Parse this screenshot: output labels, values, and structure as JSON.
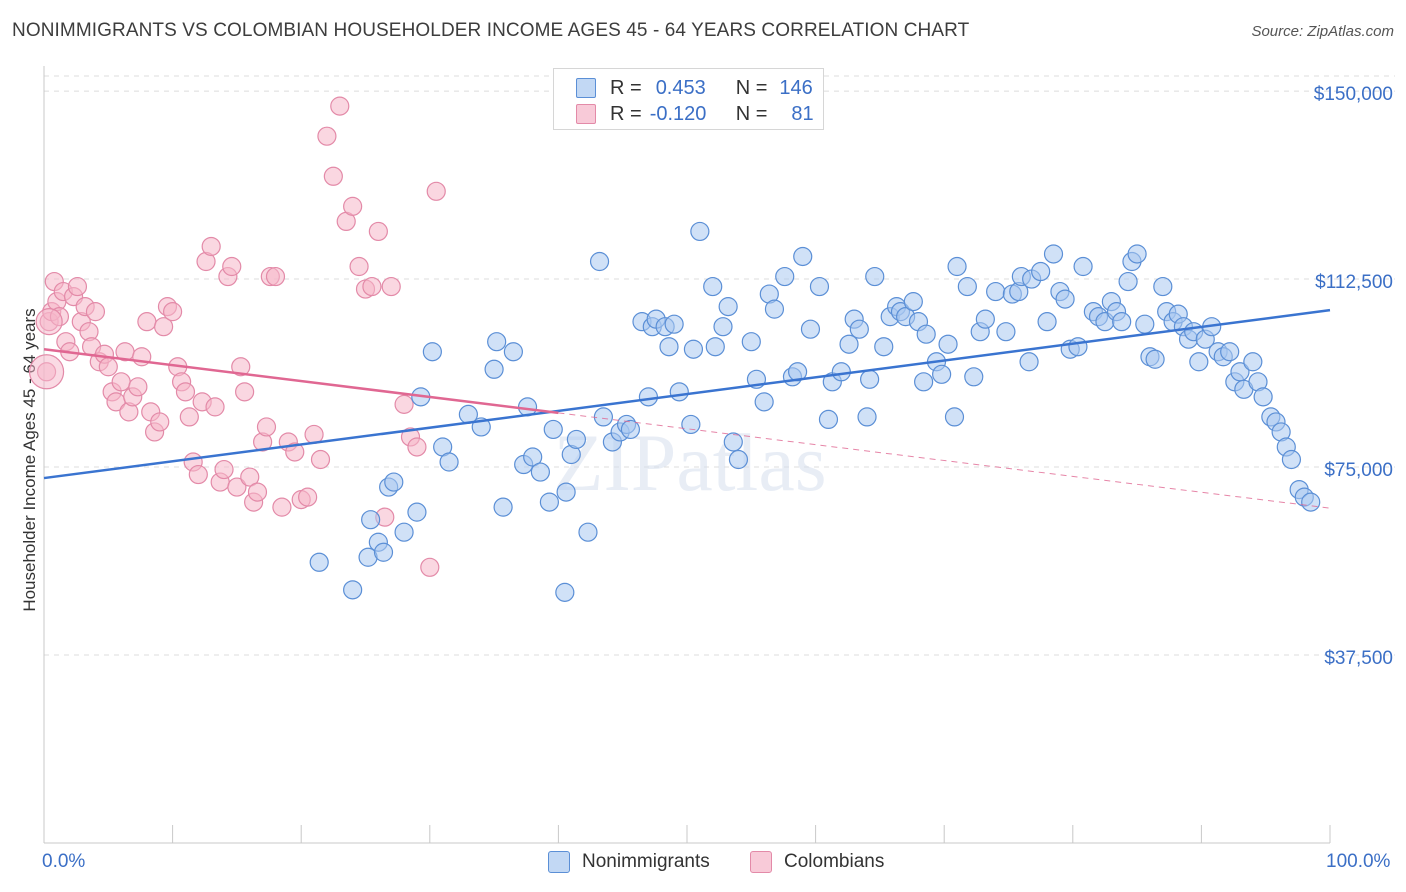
{
  "title": "NONIMMIGRANTS VS COLOMBIAN HOUSEHOLDER INCOME AGES 45 - 64 YEARS CORRELATION CHART",
  "source": "Source: ZipAtlas.com",
  "watermark": "ZIPatlas",
  "colors": {
    "blue_fill": "#a9c8f0",
    "blue_stroke": "#5b8fd6",
    "blue_line": "#3a74d0",
    "pink_fill": "#f5b6c9",
    "pink_stroke": "#e38aa8",
    "pink_line": "#e06792",
    "axis_text": "#3b6fc6",
    "grid": "#dcdcdc"
  },
  "legend": {
    "rows": [
      {
        "r_label": "R =",
        "r_value": "0.453",
        "n_label": "N =",
        "n_value": "146",
        "series": "blue"
      },
      {
        "r_label": "R =",
        "r_value": "-0.120",
        "n_label": "N =",
        "n_value": "81",
        "series": "pink"
      }
    ]
  },
  "bottom_legend": [
    {
      "label": "Nonimmigrants",
      "series": "blue"
    },
    {
      "label": "Colombians",
      "series": "pink"
    }
  ],
  "chart_data": {
    "type": "scatter",
    "title": "NONIMMIGRANTS VS COLOMBIAN HOUSEHOLDER INCOME AGES 45 - 64 YEARS CORRELATION CHART",
    "xlabel": "",
    "ylabel": "Householder Income Ages 45 - 64 years",
    "xlim": [
      0,
      100
    ],
    "ylim": [
      0,
      155000
    ],
    "x_tick_labels": [
      "0.0%",
      "100.0%"
    ],
    "y_ticks": [
      37500,
      75000,
      112500,
      150000
    ],
    "y_tick_labels": [
      "$37,500",
      "$75,000",
      "$112,500",
      "$150,000"
    ],
    "grid": true,
    "legend_placement": "top-center",
    "series": [
      {
        "name": "Nonimmigrants",
        "color": "blue",
        "trend": {
          "x0": 0,
          "y0": 72800,
          "x1": 100,
          "y1": 106300
        },
        "points": [
          [
            21.4,
            56000
          ],
          [
            24.0,
            50500
          ],
          [
            25.4,
            64500
          ],
          [
            25.2,
            57000
          ],
          [
            26.0,
            60000
          ],
          [
            26.4,
            58000
          ],
          [
            26.8,
            71000
          ],
          [
            27.2,
            72000
          ],
          [
            28.0,
            62000
          ],
          [
            29.0,
            66000
          ],
          [
            29.3,
            89000
          ],
          [
            30.2,
            98000
          ],
          [
            31.0,
            79000
          ],
          [
            31.5,
            76000
          ],
          [
            33.0,
            85500
          ],
          [
            34.0,
            83000
          ],
          [
            35.0,
            94500
          ],
          [
            35.2,
            100000
          ],
          [
            35.7,
            67000
          ],
          [
            36.5,
            98000
          ],
          [
            37.3,
            75500
          ],
          [
            37.6,
            87000
          ],
          [
            38.0,
            77000
          ],
          [
            38.6,
            74000
          ],
          [
            39.3,
            68000
          ],
          [
            39.6,
            82500
          ],
          [
            40.5,
            50000
          ],
          [
            40.6,
            70000
          ],
          [
            41.0,
            77500
          ],
          [
            41.4,
            80500
          ],
          [
            42.3,
            62000
          ],
          [
            43.2,
            116000
          ],
          [
            43.5,
            85000
          ],
          [
            44.2,
            80000
          ],
          [
            44.8,
            82000
          ],
          [
            45.3,
            83500
          ],
          [
            45.6,
            82500
          ],
          [
            46.5,
            104000
          ],
          [
            47.0,
            89000
          ],
          [
            47.3,
            103000
          ],
          [
            47.6,
            104500
          ],
          [
            48.3,
            103000
          ],
          [
            48.6,
            99000
          ],
          [
            49.0,
            103500
          ],
          [
            49.4,
            90000
          ],
          [
            50.3,
            83500
          ],
          [
            50.5,
            98500
          ],
          [
            51.0,
            122000
          ],
          [
            52.0,
            111000
          ],
          [
            52.2,
            99000
          ],
          [
            52.8,
            103000
          ],
          [
            53.2,
            107000
          ],
          [
            53.6,
            80000
          ],
          [
            54.0,
            76500
          ],
          [
            55.0,
            100000
          ],
          [
            55.4,
            92500
          ],
          [
            56.0,
            88000
          ],
          [
            56.4,
            109500
          ],
          [
            56.8,
            106500
          ],
          [
            57.6,
            113000
          ],
          [
            58.2,
            93000
          ],
          [
            58.6,
            94000
          ],
          [
            59.0,
            117000
          ],
          [
            59.6,
            102500
          ],
          [
            60.3,
            111000
          ],
          [
            61.0,
            84500
          ],
          [
            61.3,
            92000
          ],
          [
            62.0,
            94000
          ],
          [
            62.6,
            99500
          ],
          [
            63.0,
            104500
          ],
          [
            63.4,
            102500
          ],
          [
            64.0,
            85000
          ],
          [
            64.2,
            92500
          ],
          [
            64.6,
            113000
          ],
          [
            65.3,
            99000
          ],
          [
            65.8,
            105000
          ],
          [
            66.3,
            107000
          ],
          [
            66.6,
            106000
          ],
          [
            67.0,
            105000
          ],
          [
            67.6,
            108000
          ],
          [
            68.0,
            104000
          ],
          [
            68.4,
            92000
          ],
          [
            68.6,
            101500
          ],
          [
            69.4,
            96000
          ],
          [
            69.8,
            93500
          ],
          [
            70.3,
            99500
          ],
          [
            70.8,
            85000
          ],
          [
            71.0,
            115000
          ],
          [
            71.8,
            111000
          ],
          [
            72.3,
            93000
          ],
          [
            72.8,
            102000
          ],
          [
            73.2,
            104500
          ],
          [
            74.0,
            110000
          ],
          [
            74.8,
            102000
          ],
          [
            75.3,
            109500
          ],
          [
            75.8,
            110000
          ],
          [
            76.0,
            113000
          ],
          [
            76.6,
            96000
          ],
          [
            76.8,
            112500
          ],
          [
            77.5,
            114000
          ],
          [
            78.0,
            104000
          ],
          [
            78.5,
            117500
          ],
          [
            79.0,
            110000
          ],
          [
            79.4,
            108500
          ],
          [
            79.8,
            98500
          ],
          [
            80.4,
            99000
          ],
          [
            80.8,
            115000
          ],
          [
            81.6,
            106000
          ],
          [
            82.0,
            105000
          ],
          [
            82.5,
            104000
          ],
          [
            83.0,
            108000
          ],
          [
            83.4,
            106000
          ],
          [
            83.8,
            104000
          ],
          [
            84.3,
            112000
          ],
          [
            84.6,
            116000
          ],
          [
            85.0,
            117500
          ],
          [
            85.6,
            103500
          ],
          [
            86.0,
            97000
          ],
          [
            86.4,
            96500
          ],
          [
            87.0,
            111000
          ],
          [
            87.3,
            106000
          ],
          [
            87.8,
            104000
          ],
          [
            88.2,
            105500
          ],
          [
            88.6,
            103000
          ],
          [
            89.0,
            100500
          ],
          [
            89.4,
            102000
          ],
          [
            89.8,
            96000
          ],
          [
            90.3,
            100500
          ],
          [
            90.8,
            103000
          ],
          [
            91.3,
            98000
          ],
          [
            91.7,
            97000
          ],
          [
            92.2,
            98000
          ],
          [
            92.6,
            92000
          ],
          [
            93.0,
            94000
          ],
          [
            93.3,
            90500
          ],
          [
            94.0,
            96000
          ],
          [
            94.4,
            92000
          ],
          [
            94.8,
            89000
          ],
          [
            95.4,
            85000
          ],
          [
            95.8,
            84000
          ],
          [
            96.2,
            82000
          ],
          [
            96.6,
            79000
          ],
          [
            97.0,
            76500
          ],
          [
            97.6,
            70500
          ],
          [
            98.0,
            69000
          ],
          [
            98.5,
            68000
          ]
        ]
      },
      {
        "name": "Colombians",
        "color": "pink",
        "trend": {
          "x0": 0,
          "y0": 98500,
          "x1": 40,
          "y1": 85800,
          "dash_x1": 100,
          "dash_y1": 66800
        },
        "points": [
          [
            0.2,
            94000
          ],
          [
            0.4,
            104000
          ],
          [
            0.6,
            106000
          ],
          [
            0.8,
            112000
          ],
          [
            1.0,
            108000
          ],
          [
            1.2,
            105000
          ],
          [
            1.5,
            110000
          ],
          [
            1.7,
            100000
          ],
          [
            2.0,
            98000
          ],
          [
            2.3,
            109000
          ],
          [
            2.6,
            111000
          ],
          [
            2.9,
            104000
          ],
          [
            3.2,
            107000
          ],
          [
            3.5,
            102000
          ],
          [
            3.7,
            99000
          ],
          [
            4.0,
            106000
          ],
          [
            4.3,
            96000
          ],
          [
            4.7,
            97500
          ],
          [
            5.0,
            95000
          ],
          [
            5.3,
            90000
          ],
          [
            5.6,
            88000
          ],
          [
            6.0,
            92000
          ],
          [
            6.3,
            98000
          ],
          [
            6.6,
            86000
          ],
          [
            6.9,
            89000
          ],
          [
            7.3,
            91000
          ],
          [
            7.6,
            97000
          ],
          [
            8.0,
            104000
          ],
          [
            8.3,
            86000
          ],
          [
            8.6,
            82000
          ],
          [
            9.0,
            84000
          ],
          [
            9.3,
            103000
          ],
          [
            9.6,
            107000
          ],
          [
            10.0,
            106000
          ],
          [
            10.4,
            95000
          ],
          [
            10.7,
            92000
          ],
          [
            11.0,
            90000
          ],
          [
            11.3,
            85000
          ],
          [
            11.6,
            76000
          ],
          [
            12.0,
            73500
          ],
          [
            12.3,
            88000
          ],
          [
            12.6,
            116000
          ],
          [
            13.0,
            119000
          ],
          [
            13.3,
            87000
          ],
          [
            13.7,
            72000
          ],
          [
            14.0,
            74500
          ],
          [
            14.3,
            113000
          ],
          [
            14.6,
            115000
          ],
          [
            15.0,
            71000
          ],
          [
            15.3,
            95000
          ],
          [
            15.6,
            90000
          ],
          [
            16.0,
            73000
          ],
          [
            16.3,
            68000
          ],
          [
            16.6,
            70000
          ],
          [
            17.0,
            80000
          ],
          [
            17.3,
            83000
          ],
          [
            17.6,
            113000
          ],
          [
            18.0,
            113000
          ],
          [
            18.5,
            67000
          ],
          [
            19.0,
            80000
          ],
          [
            19.5,
            78000
          ],
          [
            20.0,
            68500
          ],
          [
            20.5,
            69000
          ],
          [
            21.0,
            81500
          ],
          [
            21.5,
            76500
          ],
          [
            22.0,
            141000
          ],
          [
            22.5,
            133000
          ],
          [
            23.0,
            147000
          ],
          [
            23.5,
            124000
          ],
          [
            24.0,
            127000
          ],
          [
            24.5,
            115000
          ],
          [
            25.0,
            110500
          ],
          [
            25.5,
            111000
          ],
          [
            26.0,
            122000
          ],
          [
            26.5,
            65000
          ],
          [
            27.0,
            111000
          ],
          [
            28.0,
            87500
          ],
          [
            28.5,
            81000
          ],
          [
            29.0,
            79000
          ],
          [
            30.0,
            55000
          ],
          [
            30.5,
            130000
          ]
        ]
      }
    ]
  }
}
